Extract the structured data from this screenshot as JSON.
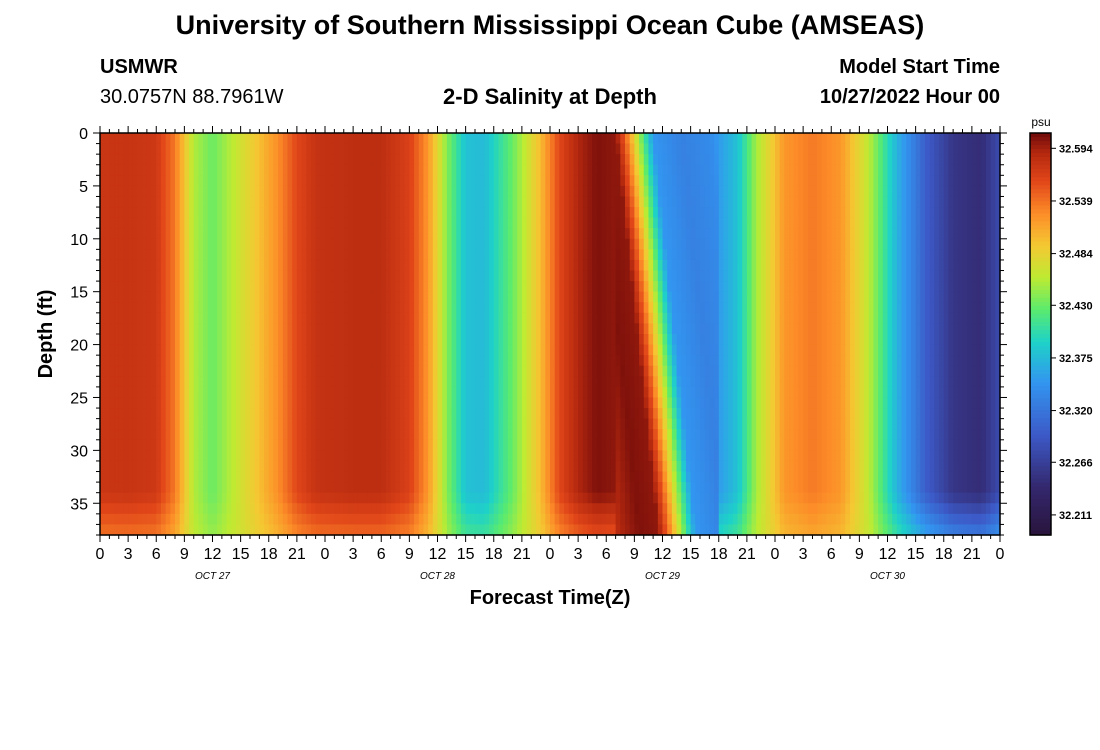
{
  "header": {
    "title": "University of Southern Mississippi Ocean Cube (AMSEAS)",
    "station": "USMWR",
    "coords": "30.0757N  88.7961W",
    "plot_title": "2-D Salinity at Depth",
    "start_label": "Model Start Time",
    "start_value": "10/27/2022 Hour 00"
  },
  "footer": {
    "title": "University of Southern Mississippi Ocean Cube (AMSEAS)"
  },
  "chart_data": {
    "type": "heatmap",
    "xlabel": "Forecast Time(Z)",
    "ylabel": "Depth (ft)",
    "x_ticks": [
      "0",
      "3",
      "6",
      "9",
      "12",
      "15",
      "18",
      "21",
      "0",
      "3",
      "6",
      "9",
      "12",
      "15",
      "18",
      "21",
      "0",
      "3",
      "6",
      "9",
      "12",
      "15",
      "18",
      "21",
      "0",
      "3",
      "6",
      "9",
      "12",
      "15",
      "18",
      "21",
      "0"
    ],
    "day_labels": [
      "OCT 27",
      "OCT 28",
      "OCT 29",
      "OCT 30"
    ],
    "xlim_hours": [
      0,
      96
    ],
    "y_ticks": [
      0,
      5,
      10,
      15,
      20,
      25,
      30,
      35
    ],
    "ylim": [
      0,
      38
    ],
    "colorbar": {
      "unit": "psu",
      "ticks": [
        "32.594",
        "32.539",
        "32.484",
        "32.430",
        "32.375",
        "32.320",
        "32.266",
        "32.211"
      ],
      "min": 32.19,
      "max": 32.61
    },
    "surface_salinity": {
      "hours": [
        0,
        3,
        6,
        8,
        10,
        12,
        15,
        19,
        21,
        23,
        27,
        30,
        33,
        35,
        37,
        39,
        41,
        44,
        47,
        49,
        51,
        53,
        55,
        56,
        59,
        62,
        65,
        68,
        70,
        73,
        76,
        79,
        82,
        85,
        88,
        91,
        94,
        96
      ],
      "values": [
        32.575,
        32.577,
        32.573,
        32.535,
        32.455,
        32.43,
        32.47,
        32.525,
        32.56,
        32.578,
        32.583,
        32.583,
        32.565,
        32.52,
        32.44,
        32.38,
        32.375,
        32.43,
        32.5,
        32.56,
        32.59,
        32.605,
        32.6,
        32.545,
        32.35,
        32.33,
        32.34,
        32.38,
        32.45,
        32.52,
        32.535,
        32.52,
        32.46,
        32.37,
        32.3,
        32.255,
        32.245,
        32.28
      ]
    }
  }
}
